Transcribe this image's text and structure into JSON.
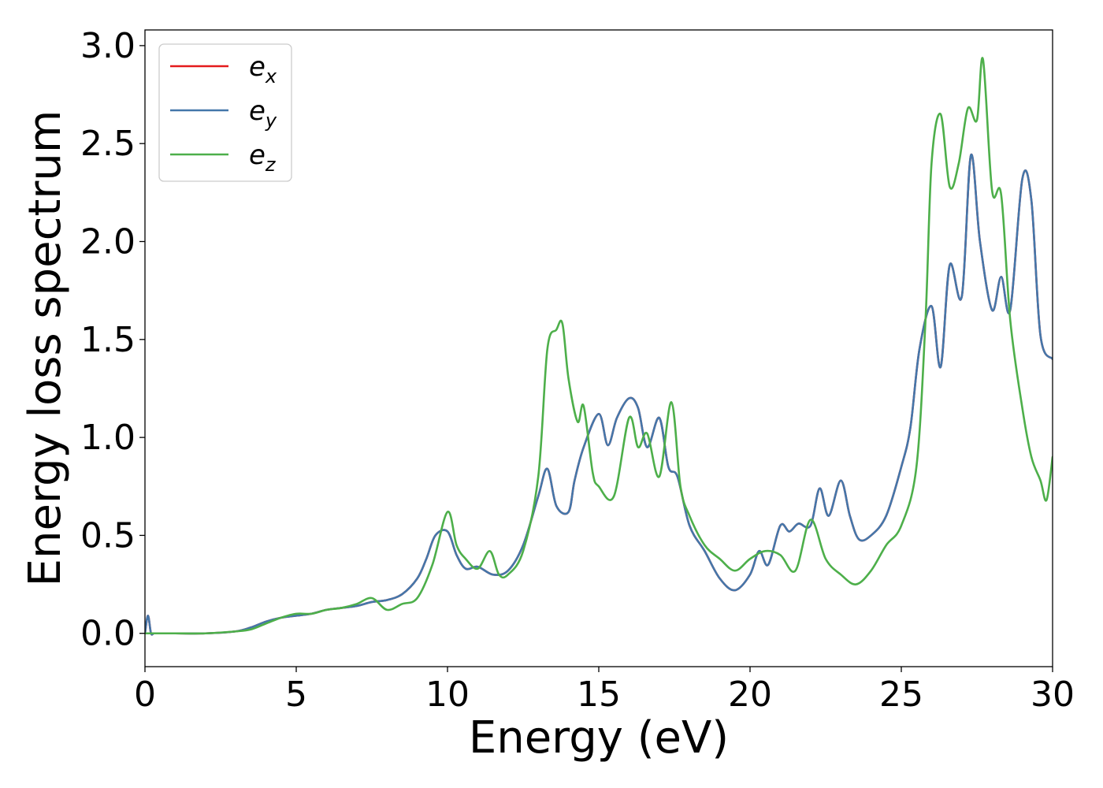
{
  "chart_data": {
    "type": "line",
    "xlabel": "Energy (eV)",
    "ylabel": "Energy loss spectrum",
    "xlim": [
      0,
      30
    ],
    "ylim": [
      -0.17,
      3.08
    ],
    "xticks": [
      0,
      5,
      10,
      15,
      20,
      25,
      30
    ],
    "xtick_labels": [
      "0",
      "5",
      "10",
      "15",
      "20",
      "25",
      "30"
    ],
    "yticks": [
      0.0,
      0.5,
      1.0,
      1.5,
      2.0,
      2.5,
      3.0
    ],
    "ytick_labels": [
      "0.0",
      "0.5",
      "1.0",
      "1.5",
      "2.0",
      "2.5",
      "3.0"
    ],
    "grid": false,
    "legend_position": "top-left",
    "series": [
      {
        "name": "e_x",
        "legend_base": "e",
        "legend_sub": "x",
        "color": "#e41a1c",
        "x": [
          0,
          0.1,
          0.2,
          0.3,
          0.5,
          1,
          2,
          3,
          3.5,
          4,
          4.5,
          5,
          5.5,
          6,
          6.5,
          7,
          7.5,
          8,
          8.5,
          9,
          9.3,
          9.6,
          10,
          10.3,
          10.6,
          11,
          11.5,
          12,
          12.5,
          13,
          13.3,
          13.6,
          14,
          14.2,
          14.5,
          15,
          15.3,
          15.6,
          16,
          16.3,
          16.6,
          17,
          17.3,
          17.6,
          18,
          18.5,
          19,
          19.5,
          20,
          20.3,
          20.6,
          21,
          21.3,
          21.6,
          22,
          22.3,
          22.6,
          23,
          23.3,
          23.6,
          24,
          24.5,
          25,
          25.3,
          25.6,
          26,
          26.3,
          26.6,
          27,
          27.3,
          27.6,
          28,
          28.3,
          28.6,
          29,
          29.3,
          29.6,
          30
        ],
        "y": [
          0.0,
          0.09,
          0.0,
          0.0,
          0.0,
          0.0,
          0.0,
          0.01,
          0.03,
          0.06,
          0.08,
          0.09,
          0.1,
          0.12,
          0.13,
          0.14,
          0.16,
          0.17,
          0.2,
          0.28,
          0.38,
          0.5,
          0.52,
          0.4,
          0.33,
          0.34,
          0.3,
          0.32,
          0.45,
          0.7,
          0.84,
          0.65,
          0.62,
          0.78,
          0.95,
          1.12,
          0.96,
          1.1,
          1.2,
          1.15,
          0.95,
          1.1,
          0.85,
          0.8,
          0.55,
          0.42,
          0.28,
          0.22,
          0.3,
          0.42,
          0.35,
          0.55,
          0.52,
          0.56,
          0.55,
          0.74,
          0.6,
          0.78,
          0.6,
          0.48,
          0.5,
          0.6,
          0.85,
          1.05,
          1.45,
          1.67,
          1.36,
          1.88,
          1.72,
          2.44,
          2.0,
          1.65,
          1.82,
          1.65,
          2.32,
          2.21,
          1.52,
          1.4
        ]
      },
      {
        "name": "e_y",
        "legend_base": "e",
        "legend_sub": "y",
        "color": "#4477aa",
        "x": [
          0,
          0.1,
          0.2,
          0.3,
          0.5,
          1,
          2,
          3,
          3.5,
          4,
          4.5,
          5,
          5.5,
          6,
          6.5,
          7,
          7.5,
          8,
          8.5,
          9,
          9.3,
          9.6,
          10,
          10.3,
          10.6,
          11,
          11.5,
          12,
          12.5,
          13,
          13.3,
          13.6,
          14,
          14.2,
          14.5,
          15,
          15.3,
          15.6,
          16,
          16.3,
          16.6,
          17,
          17.3,
          17.6,
          18,
          18.5,
          19,
          19.5,
          20,
          20.3,
          20.6,
          21,
          21.3,
          21.6,
          22,
          22.3,
          22.6,
          23,
          23.3,
          23.6,
          24,
          24.5,
          25,
          25.3,
          25.6,
          26,
          26.3,
          26.6,
          27,
          27.3,
          27.6,
          28,
          28.3,
          28.6,
          29,
          29.3,
          29.6,
          30
        ],
        "y": [
          0.0,
          0.09,
          0.0,
          0.0,
          0.0,
          0.0,
          0.0,
          0.01,
          0.03,
          0.06,
          0.08,
          0.09,
          0.1,
          0.12,
          0.13,
          0.14,
          0.16,
          0.17,
          0.2,
          0.28,
          0.38,
          0.5,
          0.52,
          0.4,
          0.33,
          0.34,
          0.3,
          0.32,
          0.45,
          0.7,
          0.84,
          0.65,
          0.62,
          0.78,
          0.95,
          1.12,
          0.96,
          1.1,
          1.2,
          1.15,
          0.95,
          1.1,
          0.85,
          0.8,
          0.55,
          0.42,
          0.28,
          0.22,
          0.3,
          0.42,
          0.35,
          0.55,
          0.52,
          0.56,
          0.55,
          0.74,
          0.6,
          0.78,
          0.6,
          0.48,
          0.5,
          0.6,
          0.85,
          1.05,
          1.45,
          1.67,
          1.36,
          1.88,
          1.72,
          2.44,
          2.0,
          1.65,
          1.82,
          1.65,
          2.32,
          2.21,
          1.52,
          1.4
        ]
      },
      {
        "name": "e_z",
        "legend_base": "e",
        "legend_sub": "z",
        "color": "#4daf4a",
        "x": [
          0,
          0.2,
          0.5,
          1,
          2,
          3,
          3.5,
          4,
          4.5,
          5,
          5.5,
          6,
          6.5,
          7,
          7.5,
          8,
          8.5,
          9,
          9.5,
          10,
          10.3,
          10.6,
          11,
          11.4,
          11.7,
          12,
          12.5,
          13,
          13.3,
          13.6,
          13.8,
          14,
          14.3,
          14.5,
          14.8,
          15,
          15.5,
          16,
          16.3,
          16.6,
          17,
          17.4,
          17.7,
          18,
          18.5,
          19,
          19.5,
          20,
          20.5,
          21,
          21.5,
          22,
          22.5,
          23,
          23.5,
          24,
          24.5,
          25,
          25.5,
          25.8,
          26,
          26.3,
          26.6,
          26.9,
          27.2,
          27.5,
          27.7,
          28,
          28.3,
          28.6,
          29,
          29.3,
          29.6,
          29.8,
          30
        ],
        "y": [
          0.0,
          0.0,
          0.0,
          0.0,
          0.0,
          0.01,
          0.02,
          0.05,
          0.08,
          0.1,
          0.1,
          0.12,
          0.13,
          0.15,
          0.18,
          0.12,
          0.15,
          0.18,
          0.35,
          0.62,
          0.45,
          0.38,
          0.33,
          0.42,
          0.3,
          0.3,
          0.42,
          0.8,
          1.45,
          1.55,
          1.58,
          1.3,
          1.08,
          1.16,
          0.82,
          0.75,
          0.7,
          1.1,
          0.95,
          1.02,
          0.8,
          1.18,
          0.75,
          0.6,
          0.45,
          0.38,
          0.32,
          0.38,
          0.42,
          0.4,
          0.32,
          0.58,
          0.38,
          0.3,
          0.25,
          0.32,
          0.45,
          0.55,
          0.85,
          1.6,
          2.4,
          2.65,
          2.28,
          2.4,
          2.68,
          2.62,
          2.93,
          2.26,
          2.24,
          1.6,
          1.15,
          0.9,
          0.78,
          0.68,
          0.9
        ]
      }
    ]
  }
}
